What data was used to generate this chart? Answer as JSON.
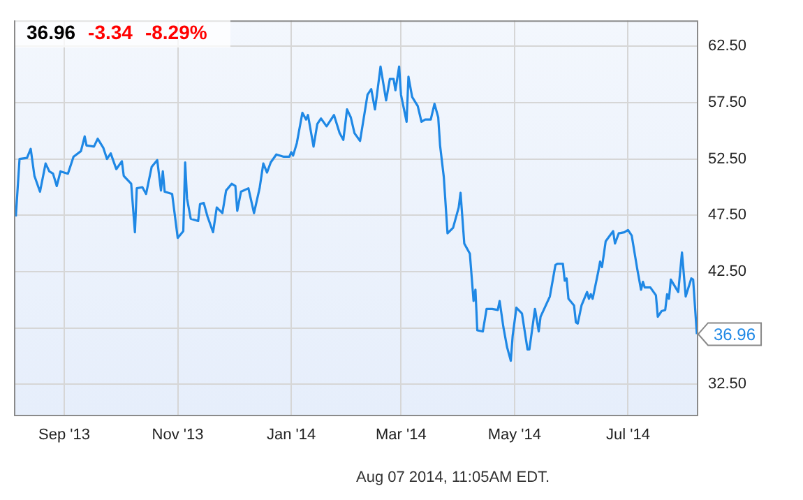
{
  "chart_data": {
    "type": "line",
    "xlim": [
      "2013-08-05",
      "2014-08-07"
    ],
    "ylim": [
      29.8,
      64.8
    ],
    "xticks": [
      {
        "value": "2013-09-01",
        "label": "Sep '13"
      },
      {
        "value": "2013-11-01",
        "label": "Nov '13"
      },
      {
        "value": "2014-01-01",
        "label": "Jan '14"
      },
      {
        "value": "2014-03-01",
        "label": "Mar '14"
      },
      {
        "value": "2014-05-01",
        "label": "May '14"
      },
      {
        "value": "2014-07-01",
        "label": "Jul '14"
      }
    ],
    "yticks": [
      {
        "value": 32.5,
        "label": "32.50"
      },
      {
        "value": 37.5,
        "label": null
      },
      {
        "value": 42.5,
        "label": "42.50"
      },
      {
        "value": 47.5,
        "label": "47.50"
      },
      {
        "value": 52.5,
        "label": "52.50"
      },
      {
        "value": 57.5,
        "label": "57.50"
      },
      {
        "value": 62.5,
        "label": "62.50"
      }
    ],
    "grid": true,
    "legend": false,
    "marker": "none",
    "line_style": "solid",
    "series": [
      {
        "color": "#1f88e5",
        "x": [
          "2013-08-06",
          "2013-08-08",
          "2013-08-12",
          "2013-08-14",
          "2013-08-16",
          "2013-08-19",
          "2013-08-22",
          "2013-08-24",
          "2013-08-26",
          "2013-08-28",
          "2013-08-30",
          "2013-09-03",
          "2013-09-06",
          "2013-09-10",
          "2013-09-12",
          "2013-09-13",
          "2013-09-17",
          "2013-09-19",
          "2013-09-22",
          "2013-09-24",
          "2013-09-26",
          "2013-09-29",
          "2013-10-02",
          "2013-10-03",
          "2013-10-07",
          "2013-10-09",
          "2013-10-10",
          "2013-10-13",
          "2013-10-15",
          "2013-10-18",
          "2013-10-21",
          "2013-10-23",
          "2013-10-24",
          "2013-10-25",
          "2013-10-29",
          "2013-11-01",
          "2013-11-04",
          "2013-11-05",
          "2013-11-06",
          "2013-11-08",
          "2013-11-12",
          "2013-11-13",
          "2013-11-15",
          "2013-11-17",
          "2013-11-20",
          "2013-11-22",
          "2013-11-25",
          "2013-11-27",
          "2013-11-30",
          "2013-12-02",
          "2013-12-03",
          "2013-12-05",
          "2013-12-09",
          "2013-12-12",
          "2013-12-15",
          "2013-12-17",
          "2013-12-19",
          "2013-12-21",
          "2013-12-24",
          "2013-12-28",
          "2013-12-31",
          "2014-01-01",
          "2014-01-02",
          "2014-01-04",
          "2014-01-05",
          "2014-01-07",
          "2014-01-09",
          "2014-01-10",
          "2014-01-13",
          "2014-01-15",
          "2014-01-17",
          "2014-01-20",
          "2014-01-24",
          "2014-01-27",
          "2014-01-29",
          "2014-01-31",
          "2014-02-02",
          "2014-02-04",
          "2014-02-07",
          "2014-02-11",
          "2014-02-13",
          "2014-02-15",
          "2014-02-16",
          "2014-02-18",
          "2014-02-21",
          "2014-02-23",
          "2014-02-25",
          "2014-02-26",
          "2014-02-28",
          "2014-03-01",
          "2014-03-04",
          "2014-03-05",
          "2014-03-07",
          "2014-03-10",
          "2014-03-12",
          "2014-03-14",
          "2014-03-17",
          "2014-03-19",
          "2014-03-21",
          "2014-03-22",
          "2014-03-24",
          "2014-03-26",
          "2014-03-29",
          "2014-04-01",
          "2014-04-02",
          "2014-04-04",
          "2014-04-07",
          "2014-04-09",
          "2014-04-10",
          "2014-04-11",
          "2014-04-14",
          "2014-04-16",
          "2014-04-19",
          "2014-04-22",
          "2014-04-23",
          "2014-04-25",
          "2014-04-27",
          "2014-04-29",
          "2014-04-30",
          "2014-05-02",
          "2014-05-05",
          "2014-05-08",
          "2014-05-09",
          "2014-05-12",
          "2014-05-14",
          "2014-05-15",
          "2014-05-20",
          "2014-05-23",
          "2014-05-24",
          "2014-05-27",
          "2014-05-28",
          "2014-05-29",
          "2014-05-30",
          "2014-06-02",
          "2014-06-03",
          "2014-06-04",
          "2014-06-06",
          "2014-06-09",
          "2014-06-10",
          "2014-06-11",
          "2014-06-12",
          "2014-06-15",
          "2014-06-16",
          "2014-06-17",
          "2014-06-19",
          "2014-06-23",
          "2014-06-24",
          "2014-06-26",
          "2014-06-29",
          "2014-07-01",
          "2014-07-03",
          "2014-07-06",
          "2014-07-08",
          "2014-07-09",
          "2014-07-10",
          "2014-07-13",
          "2014-07-16",
          "2014-07-17",
          "2014-07-19",
          "2014-07-21",
          "2014-07-22",
          "2014-07-23",
          "2014-07-24",
          "2014-07-28",
          "2014-07-30",
          "2014-08-01",
          "2014-08-04",
          "2014-08-05",
          "2014-08-07"
        ],
        "values": [
          47.4,
          52.5,
          52.6,
          53.4,
          51.0,
          49.6,
          52.1,
          51.4,
          51.2,
          50.1,
          51.4,
          51.2,
          52.7,
          53.2,
          54.5,
          53.7,
          53.6,
          54.3,
          53.5,
          52.5,
          53.0,
          51.6,
          52.3,
          51.0,
          50.3,
          46.0,
          49.9,
          50.0,
          49.4,
          51.8,
          52.4,
          49.7,
          51.4,
          49.6,
          49.4,
          45.5,
          46.1,
          52.2,
          49.0,
          47.2,
          47.0,
          48.5,
          48.6,
          47.4,
          46.0,
          48.2,
          47.7,
          49.7,
          50.3,
          50.1,
          47.9,
          49.6,
          49.9,
          47.7,
          49.9,
          52.1,
          51.3,
          52.2,
          52.9,
          52.7,
          52.7,
          53.1,
          52.8,
          53.9,
          54.8,
          56.6,
          56.0,
          56.4,
          53.6,
          55.6,
          56.1,
          55.4,
          56.4,
          54.8,
          54.2,
          56.9,
          56.2,
          54.8,
          54.1,
          58.2,
          58.7,
          56.9,
          58.1,
          60.7,
          57.7,
          59.6,
          59.6,
          58.6,
          60.7,
          58.2,
          55.8,
          59.8,
          58.0,
          57.2,
          55.8,
          56.0,
          56.0,
          57.4,
          56.2,
          53.7,
          50.9,
          45.9,
          46.4,
          48.2,
          49.5,
          45.0,
          44.1,
          39.9,
          40.9,
          37.3,
          37.2,
          39.2,
          39.2,
          39.1,
          39.9,
          37.6,
          35.8,
          34.6,
          36.8,
          39.3,
          38.8,
          35.6,
          35.6,
          39.2,
          37.2,
          38.5,
          40.3,
          43.1,
          43.2,
          43.2,
          41.7,
          41.9,
          40.1,
          39.5,
          38.0,
          37.9,
          39.5,
          40.7,
          40.1,
          40.5,
          40.1,
          42.5,
          43.4,
          42.9,
          45.2,
          46.1,
          45.0,
          45.9,
          46.0,
          46.2,
          45.7,
          42.7,
          40.9,
          41.6,
          41.1,
          41.1,
          40.4,
          38.5,
          39.0,
          39.1,
          40.5,
          40.1,
          41.8,
          40.7,
          44.2,
          40.3,
          41.9,
          41.8,
          36.96
        ]
      }
    ],
    "annotations": [
      "36.96",
      "-3.34",
      "-8.29%",
      {
        "text": "36.96",
        "x": "2014-08-07",
        "y": 36.96
      },
      "Aug 07 2014, 11:05AM EDT."
    ]
  }
}
